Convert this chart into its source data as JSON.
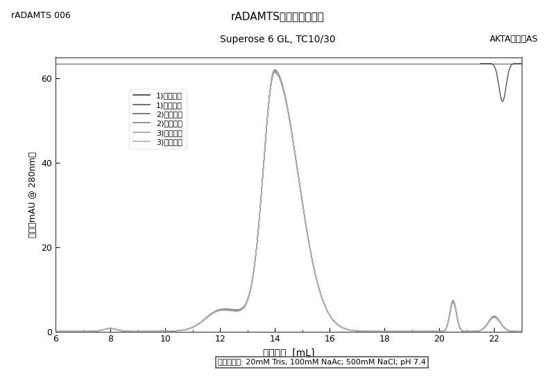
{
  "title_top": "rADAMTS制剂的凝胶过滤",
  "title_sub": "Superose 6 GL, TC10/30",
  "label_topleft": "rADAMTS 006",
  "label_topright": "AKTA纯化器AS",
  "xlabel_left": "洗脱体积",
  "xlabel_right": "[mL]",
  "ylabel": "吸收（mAU @ 280nm）",
  "buffer_label": "洗脱缓冲液: 20mM Tris, 100mM NaAc; 500mM NaCl; pH 7.4",
  "xlim": [
    6,
    23
  ],
  "ylim": [
    0,
    65
  ],
  "yticks": [
    0,
    20,
    40,
    60
  ],
  "xticks": [
    6,
    8,
    10,
    12,
    14,
    16,
    18,
    20,
    22
  ],
  "saturation_line_y": 63.5,
  "legend_entries": [
    "1)液体开始",
    "1)冷干开始",
    "2)液体开始",
    "2)冷干开始",
    "3)液体开始",
    "3)冷干开始"
  ],
  "line_colors": [
    "#222222",
    "#444444",
    "#666666",
    "#888888",
    "#aaaaaa",
    "#bbbbbb"
  ],
  "line_styles": [
    "-",
    "-",
    "-",
    "-",
    "-",
    "-"
  ],
  "background_color": "#ffffff"
}
